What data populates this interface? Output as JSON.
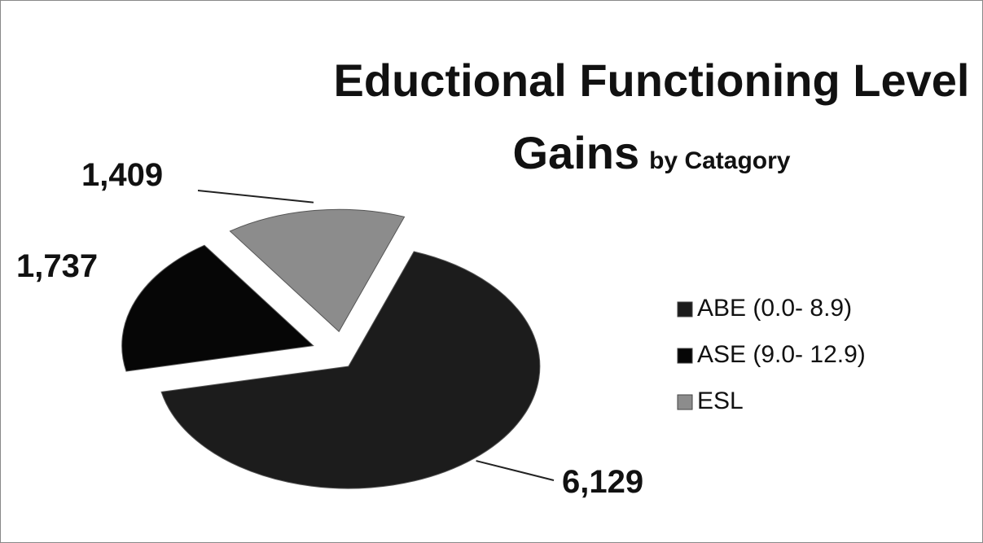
{
  "chart_data": {
    "type": "pie",
    "title": "Eductional Functioning Level Gains",
    "subtitle": "by Catagory",
    "categories": [
      "ABE (0.0- 8.9)",
      "ASE (9.0- 12.9)",
      "ESL"
    ],
    "values": [
      6129,
      1737,
      1409
    ],
    "value_labels": [
      "6,129",
      "1,737",
      "1,409"
    ],
    "colors": [
      "#1c1c1c",
      "#060606",
      "#8c8c8c"
    ],
    "legend": "right"
  }
}
